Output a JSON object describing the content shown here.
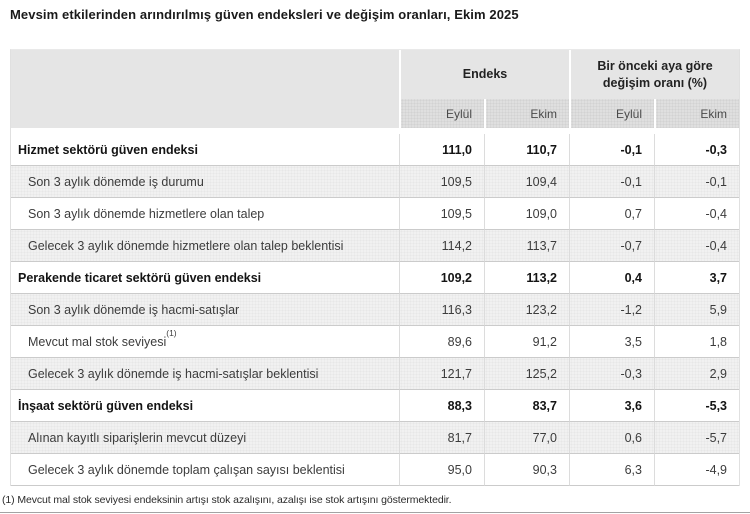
{
  "page_title": "Mevsim etkilerinden arındırılmış güven endeksleri ve değişim oranları, Ekim 2025",
  "table": {
    "col_groups": [
      {
        "label": "Endeks"
      },
      {
        "label": "Bir önceki aya göre değişim oranı (%)"
      }
    ],
    "sub_headers": [
      "Eylül",
      "Ekim",
      "Eylül",
      "Ekim"
    ],
    "rows": [
      {
        "label": "Hizmet sektörü güven endeksi",
        "bold": true,
        "values": [
          "111,0",
          "110,7",
          "-0,1",
          "-0,3"
        ]
      },
      {
        "label": "Son 3 aylık dönemde iş durumu",
        "bold": false,
        "values": [
          "109,5",
          "109,4",
          "-0,1",
          "-0,1"
        ]
      },
      {
        "label": "Son 3 aylık dönemde hizmetlere olan talep",
        "bold": false,
        "values": [
          "109,5",
          "109,0",
          "0,7",
          "-0,4"
        ]
      },
      {
        "label": "Gelecek 3 aylık dönemde hizmetlere olan talep beklentisi",
        "bold": false,
        "values": [
          "114,2",
          "113,7",
          "-0,7",
          "-0,4"
        ]
      },
      {
        "label": "Perakende ticaret sektörü güven endeksi",
        "bold": true,
        "values": [
          "109,2",
          "113,2",
          "0,4",
          "3,7"
        ]
      },
      {
        "label": "Son 3 aylık dönemde iş hacmi-satışlar",
        "bold": false,
        "values": [
          "116,3",
          "123,2",
          "-1,2",
          "5,9"
        ]
      },
      {
        "label": "Mevcut mal stok seviyesi",
        "sup": "(1)",
        "bold": false,
        "values": [
          "89,6",
          "91,2",
          "3,5",
          "1,8"
        ]
      },
      {
        "label": "Gelecek 3 aylık dönemde iş hacmi-satışlar beklentisi",
        "bold": false,
        "values": [
          "121,7",
          "125,2",
          "-0,3",
          "2,9"
        ]
      },
      {
        "label": "İnşaat sektörü güven endeksi",
        "bold": true,
        "values": [
          "88,3",
          "83,7",
          "3,6",
          "-5,3"
        ]
      },
      {
        "label": "Alınan kayıtlı siparişlerin mevcut düzeyi",
        "bold": false,
        "values": [
          "81,7",
          "77,0",
          "0,6",
          "-5,7"
        ]
      },
      {
        "label": "Gelecek 3 aylık dönemde toplam çalışan sayısı beklentisi",
        "bold": false,
        "values": [
          "95,0",
          "90,3",
          "6,3",
          "-4,9"
        ]
      }
    ]
  },
  "footnote": "(1) Mevcut mal stok seviyesi endeksinin artışı stok azalışını, azalışı ise stok artışını göstermektedir."
}
